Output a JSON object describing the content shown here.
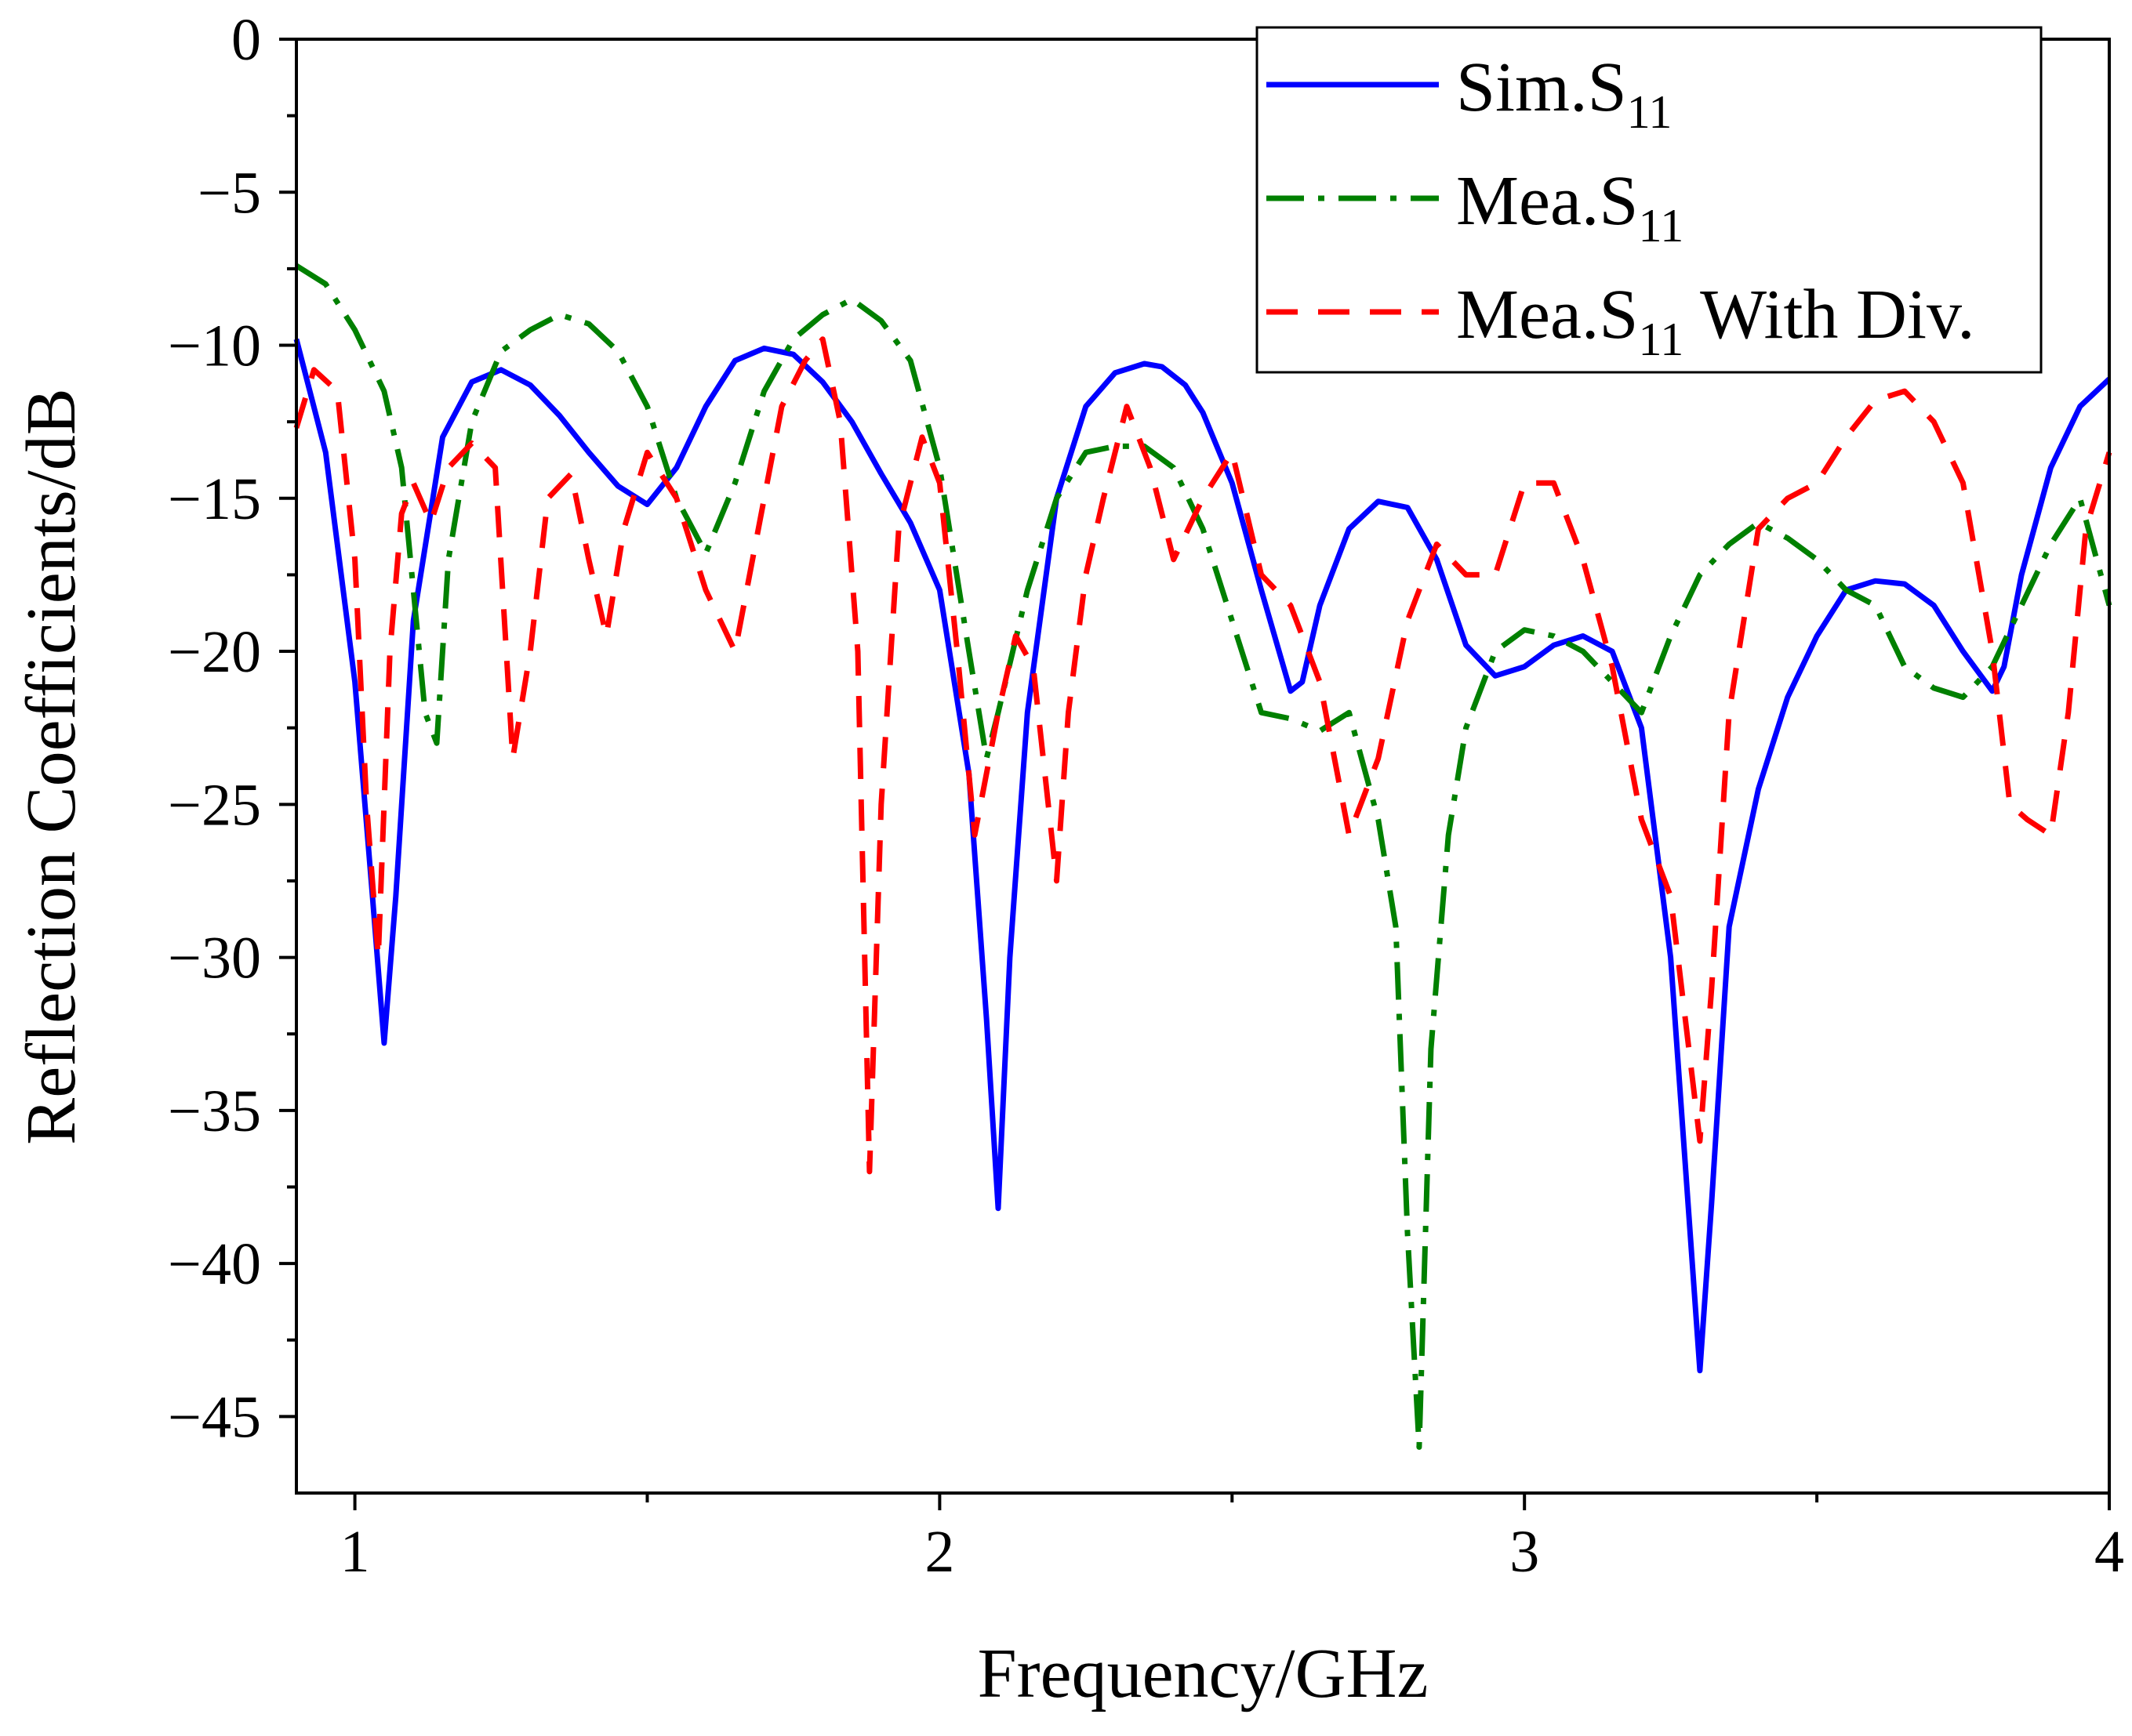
{
  "chart_data": {
    "type": "line",
    "title": "",
    "xlabel": "Frequency/GHz",
    "ylabel": "Reflection Coefficients/dB",
    "xlim": [
      0.9,
      4.0
    ],
    "ylim": [
      -47.5,
      0
    ],
    "xticks": [
      1,
      2,
      3,
      4
    ],
    "xtick_labels": [
      "1",
      "2",
      "3",
      "4"
    ],
    "yticks": [
      0,
      -5,
      -10,
      -15,
      -20,
      -25,
      -30,
      -35,
      -40,
      -45
    ],
    "ytick_labels": [
      "0",
      "−5",
      "−10",
      "−15",
      "−20",
      "−25",
      "−30",
      "−35",
      "−40",
      "−45"
    ],
    "grid": false,
    "legend_position": "top-right",
    "series": [
      {
        "name": "Sim.S11",
        "legend_base": "Sim.S",
        "legend_sub": "11",
        "legend_suffix": "",
        "color": "#0000ff",
        "style": "solid",
        "x": [
          0.9,
          0.95,
          1.0,
          1.03,
          1.05,
          1.07,
          1.1,
          1.15,
          1.2,
          1.25,
          1.3,
          1.35,
          1.4,
          1.45,
          1.5,
          1.55,
          1.6,
          1.65,
          1.7,
          1.75,
          1.8,
          1.85,
          1.9,
          1.95,
          2.0,
          2.05,
          2.08,
          2.1,
          2.12,
          2.15,
          2.2,
          2.25,
          2.3,
          2.35,
          2.38,
          2.42,
          2.45,
          2.5,
          2.55,
          2.6,
          2.62,
          2.65,
          2.7,
          2.75,
          2.8,
          2.85,
          2.9,
          2.95,
          3.0,
          3.05,
          3.1,
          3.15,
          3.2,
          3.25,
          3.3,
          3.32,
          3.35,
          3.4,
          3.45,
          3.5,
          3.55,
          3.6,
          3.65,
          3.7,
          3.75,
          3.8,
          3.82,
          3.85,
          3.9,
          3.95,
          4.0
        ],
        "y": [
          -9.8,
          -13.5,
          -21.0,
          -28.0,
          -32.8,
          -28.0,
          -19.0,
          -13.0,
          -11.2,
          -10.8,
          -11.3,
          -12.3,
          -13.5,
          -14.6,
          -15.2,
          -14.0,
          -12.0,
          -10.5,
          -10.1,
          -10.3,
          -11.2,
          -12.5,
          -14.2,
          -15.8,
          -18.0,
          -24.0,
          -32.0,
          -38.2,
          -30.0,
          -22.0,
          -15.0,
          -12.0,
          -10.9,
          -10.6,
          -10.7,
          -11.3,
          -12.2,
          -14.5,
          -18.0,
          -21.3,
          -21.0,
          -18.5,
          -16.0,
          -15.1,
          -15.3,
          -17.0,
          -19.8,
          -20.8,
          -20.5,
          -19.8,
          -19.5,
          -20.0,
          -22.5,
          -30.0,
          -43.5,
          -38.0,
          -29.0,
          -24.5,
          -21.5,
          -19.5,
          -18.0,
          -17.7,
          -17.8,
          -18.5,
          -20.0,
          -21.3,
          -20.5,
          -17.5,
          -14.0,
          -12.0,
          -11.1
        ]
      },
      {
        "name": "Mea.S11",
        "legend_base": "Mea.S",
        "legend_sub": "11",
        "legend_suffix": "",
        "color": "#008000",
        "style": "dashdot",
        "x": [
          0.9,
          0.95,
          1.0,
          1.05,
          1.08,
          1.1,
          1.12,
          1.14,
          1.16,
          1.2,
          1.25,
          1.3,
          1.35,
          1.4,
          1.45,
          1.5,
          1.55,
          1.6,
          1.65,
          1.7,
          1.75,
          1.8,
          1.85,
          1.9,
          1.95,
          2.0,
          2.05,
          2.08,
          2.1,
          2.15,
          2.2,
          2.25,
          2.3,
          2.35,
          2.4,
          2.45,
          2.5,
          2.55,
          2.6,
          2.65,
          2.7,
          2.75,
          2.78,
          2.8,
          2.82,
          2.84,
          2.87,
          2.9,
          2.95,
          3.0,
          3.05,
          3.1,
          3.15,
          3.2,
          3.25,
          3.3,
          3.35,
          3.4,
          3.45,
          3.5,
          3.55,
          3.6,
          3.65,
          3.7,
          3.75,
          3.8,
          3.85,
          3.9,
          3.95,
          4.0
        ],
        "y": [
          -7.4,
          -8.0,
          -9.5,
          -11.5,
          -14.0,
          -18.0,
          -22.0,
          -23.0,
          -17.0,
          -12.5,
          -10.2,
          -9.5,
          -9.0,
          -9.3,
          -10.2,
          -12.0,
          -15.0,
          -16.8,
          -14.5,
          -11.5,
          -9.8,
          -9.0,
          -8.5,
          -9.2,
          -10.5,
          -14.0,
          -20.0,
          -23.5,
          -22.0,
          -18.0,
          -15.0,
          -13.5,
          -13.3,
          -13.3,
          -14.0,
          -16.0,
          -19.0,
          -22.0,
          -22.2,
          -22.6,
          -22.0,
          -25.5,
          -29.0,
          -39.0,
          -46.0,
          -33.0,
          -26.0,
          -22.5,
          -20.0,
          -19.3,
          -19.5,
          -20.0,
          -21.0,
          -22.0,
          -19.5,
          -17.5,
          -16.5,
          -15.8,
          -16.3,
          -17.0,
          -18.0,
          -18.5,
          -20.5,
          -21.2,
          -21.5,
          -20.5,
          -18.5,
          -16.5,
          -15.0,
          -18.5
        ]
      },
      {
        "name": "Mea.S11 With Div.",
        "legend_base": "Mea.S",
        "legend_sub": "11",
        "legend_suffix": " With Div.",
        "color": "#ff0000",
        "style": "dashed",
        "x": [
          0.9,
          0.93,
          0.97,
          1.0,
          1.02,
          1.04,
          1.06,
          1.08,
          1.1,
          1.13,
          1.16,
          1.2,
          1.24,
          1.27,
          1.3,
          1.33,
          1.37,
          1.4,
          1.43,
          1.46,
          1.5,
          1.55,
          1.6,
          1.65,
          1.7,
          1.73,
          1.77,
          1.8,
          1.83,
          1.86,
          1.88,
          1.9,
          1.93,
          1.97,
          2.0,
          2.03,
          2.06,
          2.1,
          2.13,
          2.16,
          2.2,
          2.22,
          2.25,
          2.28,
          2.32,
          2.36,
          2.4,
          2.45,
          2.5,
          2.55,
          2.6,
          2.65,
          2.7,
          2.75,
          2.8,
          2.85,
          2.9,
          2.95,
          3.0,
          3.05,
          3.1,
          3.15,
          3.2,
          3.25,
          3.3,
          3.32,
          3.35,
          3.4,
          3.45,
          3.5,
          3.55,
          3.6,
          3.65,
          3.7,
          3.75,
          3.8,
          3.83,
          3.86,
          3.9,
          3.93,
          3.96,
          4.0
        ],
        "y": [
          -12.7,
          -10.8,
          -11.5,
          -17.0,
          -25.0,
          -30.0,
          -20.0,
          -15.5,
          -14.5,
          -15.8,
          -14.0,
          -13.2,
          -14.0,
          -23.5,
          -20.0,
          -15.0,
          -14.2,
          -17.0,
          -19.5,
          -16.0,
          -13.5,
          -15.0,
          -18.0,
          -20.0,
          -15.0,
          -12.0,
          -10.5,
          -9.8,
          -12.5,
          -20.0,
          -37.0,
          -25.0,
          -16.0,
          -13.0,
          -14.5,
          -20.0,
          -26.0,
          -22.0,
          -19.5,
          -20.5,
          -27.5,
          -22.0,
          -17.5,
          -15.0,
          -12.0,
          -14.0,
          -17.0,
          -15.0,
          -13.5,
          -17.5,
          -18.5,
          -21.0,
          -26.0,
          -23.5,
          -19.0,
          -16.5,
          -17.5,
          -17.5,
          -14.5,
          -14.5,
          -17.0,
          -20.5,
          -25.5,
          -28.0,
          -36.0,
          -31.0,
          -22.0,
          -16.0,
          -15.0,
          -14.5,
          -13.0,
          -11.8,
          -11.5,
          -12.5,
          -14.5,
          -20.0,
          -25.0,
          -25.5,
          -26.0,
          -22.0,
          -16.0,
          -13.5
        ]
      }
    ]
  }
}
